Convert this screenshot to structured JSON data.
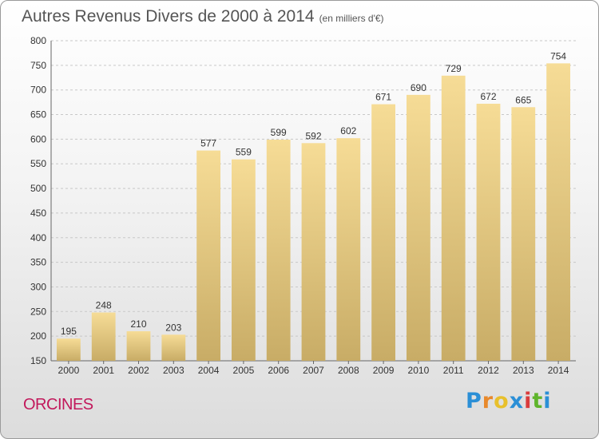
{
  "title": "Autres Revenus Divers de 2000 à 2014",
  "unit": "(en milliers d'€)",
  "commune": "ORCINES",
  "logo": {
    "letters": [
      "P",
      "r",
      "o",
      "x",
      "i",
      "t",
      "i"
    ],
    "colors": [
      "#2b8fd6",
      "#e8892c",
      "#e8c02c",
      "#2b8fd6",
      "#d93c3c",
      "#5fb52c",
      "#2b8fd6"
    ]
  },
  "bar_color": "#e8cf85",
  "chart_data": {
    "type": "bar",
    "categories": [
      "2000",
      "2001",
      "2002",
      "2003",
      "2004",
      "2005",
      "2006",
      "2007",
      "2008",
      "2009",
      "2010",
      "2011",
      "2012",
      "2013",
      "2014"
    ],
    "values": [
      195,
      248,
      210,
      203,
      577,
      559,
      599,
      592,
      602,
      671,
      690,
      729,
      672,
      665,
      754
    ],
    "ylim": [
      150,
      800
    ],
    "yticks": [
      150,
      200,
      250,
      300,
      350,
      400,
      450,
      500,
      550,
      600,
      650,
      700,
      750,
      800
    ],
    "grid": true
  }
}
